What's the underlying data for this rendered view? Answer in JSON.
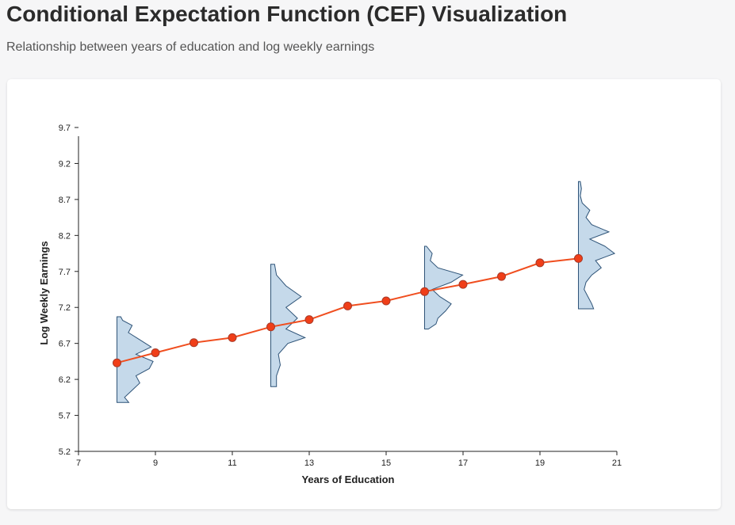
{
  "page": {
    "title": "Conditional Expectation Function (CEF) Visualization",
    "subtitle": "Relationship between years of education and log weekly earnings"
  },
  "chart_data": {
    "type": "line",
    "xlabel": "Years of Education",
    "ylabel": "Log Weekly Earnings",
    "xlim": [
      7,
      21
    ],
    "ylim": [
      5.2,
      9.7
    ],
    "xticks": [
      7,
      9,
      11,
      13,
      15,
      17,
      19,
      21
    ],
    "yticks": [
      5.2,
      5.7,
      6.2,
      6.7,
      7.2,
      7.7,
      8.2,
      8.7,
      9.2,
      9.7
    ],
    "grid": false,
    "series": [
      {
        "x": [
          8,
          9,
          10,
          11,
          12,
          13,
          14,
          15,
          16,
          17,
          18,
          19,
          20
        ],
        "values": [
          6.43,
          6.57,
          6.71,
          6.78,
          6.93,
          7.03,
          7.22,
          7.29,
          7.42,
          7.52,
          7.63,
          7.82,
          7.88
        ]
      }
    ],
    "distributions": [
      {
        "x": 8,
        "y": [
          5.88,
          5.95,
          6.05,
          6.15,
          6.25,
          6.35,
          6.45,
          6.55,
          6.65,
          6.75,
          6.85,
          6.95,
          7.02,
          7.07
        ],
        "density": [
          0.31,
          0.2,
          0.4,
          0.6,
          0.5,
          0.85,
          0.95,
          0.5,
          0.9,
          0.6,
          0.3,
          0.4,
          0.15,
          0.1
        ]
      },
      {
        "x": 12,
        "y": [
          6.1,
          6.25,
          6.4,
          6.55,
          6.7,
          6.78,
          6.9,
          7.05,
          7.2,
          7.35,
          7.5,
          7.65,
          7.8
        ],
        "density": [
          0.15,
          0.15,
          0.25,
          0.2,
          0.45,
          0.9,
          0.4,
          0.7,
          0.4,
          0.8,
          0.4,
          0.15,
          0.1
        ]
      },
      {
        "x": 16,
        "y": [
          6.9,
          6.97,
          7.05,
          7.15,
          7.25,
          7.35,
          7.45,
          7.55,
          7.65,
          7.75,
          7.85,
          7.95,
          8.05
        ],
        "density": [
          0.1,
          0.3,
          0.35,
          0.55,
          0.7,
          0.4,
          0.2,
          0.7,
          1.0,
          0.35,
          0.15,
          0.2,
          0.05
        ]
      },
      {
        "x": 20,
        "y": [
          7.18,
          7.25,
          7.35,
          7.45,
          7.55,
          7.65,
          7.75,
          7.85,
          7.95,
          8.05,
          8.15,
          8.25,
          8.35,
          8.45,
          8.55,
          8.65,
          8.75,
          8.85,
          8.95
        ],
        "density": [
          0.4,
          0.35,
          0.25,
          0.15,
          0.2,
          0.35,
          0.6,
          0.45,
          0.95,
          0.7,
          0.3,
          0.8,
          0.35,
          0.2,
          0.3,
          0.1,
          0.05,
          0.08,
          0.05
        ]
      }
    ],
    "colors": {
      "line": "#f04e1f",
      "point_fill": "#f03e18",
      "point_stroke": "#a83a28",
      "dist_fill": "#c5d9ea",
      "dist_stroke": "#2f5478",
      "axis": "#222222"
    }
  }
}
